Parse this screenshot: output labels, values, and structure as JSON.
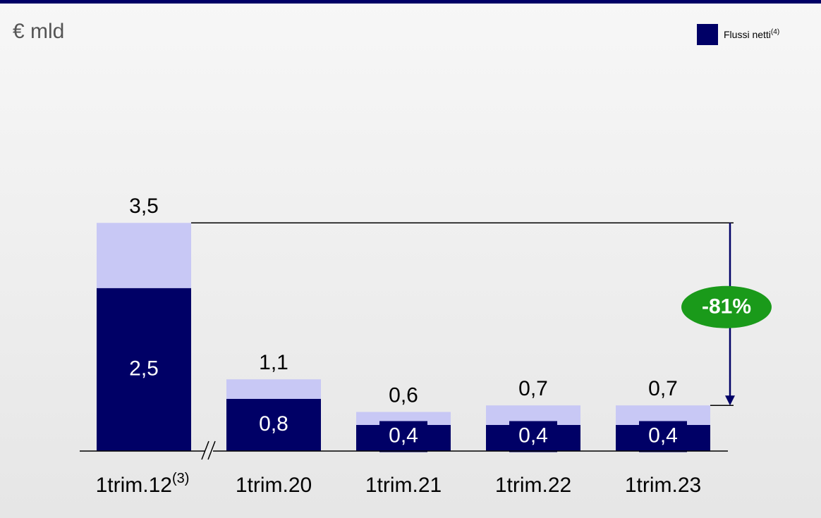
{
  "chart_data": {
    "type": "stacked_bar",
    "subtitle": "€ mld",
    "categories": [
      "1trim.12",
      "1trim.20",
      "1trim.21",
      "1trim.22",
      "1trim.23"
    ],
    "category_superscripts": [
      "(3)",
      null,
      null,
      null,
      null
    ],
    "series": [
      {
        "name": "Flussi netti",
        "name_superscript": "(4)",
        "color": "#000066",
        "values": [
          2.5,
          0.8,
          0.4,
          0.4,
          0.4
        ],
        "value_labels": [
          "2,5",
          "0,8",
          "0,4",
          "0,4",
          "0,4"
        ]
      },
      {
        "color": "#c8c8f5",
        "values": [
          1.0,
          0.3,
          0.2,
          0.3,
          0.3
        ]
      }
    ],
    "totals": [
      3.5,
      1.1,
      0.6,
      0.7,
      0.7
    ],
    "total_labels": [
      "3,5",
      "1,1",
      "0,6",
      "0,7",
      "0,7"
    ],
    "annotation": "-81%",
    "annotation_color": "#1a9a1a",
    "ylim": [
      0,
      4
    ],
    "legend": "top-right"
  }
}
